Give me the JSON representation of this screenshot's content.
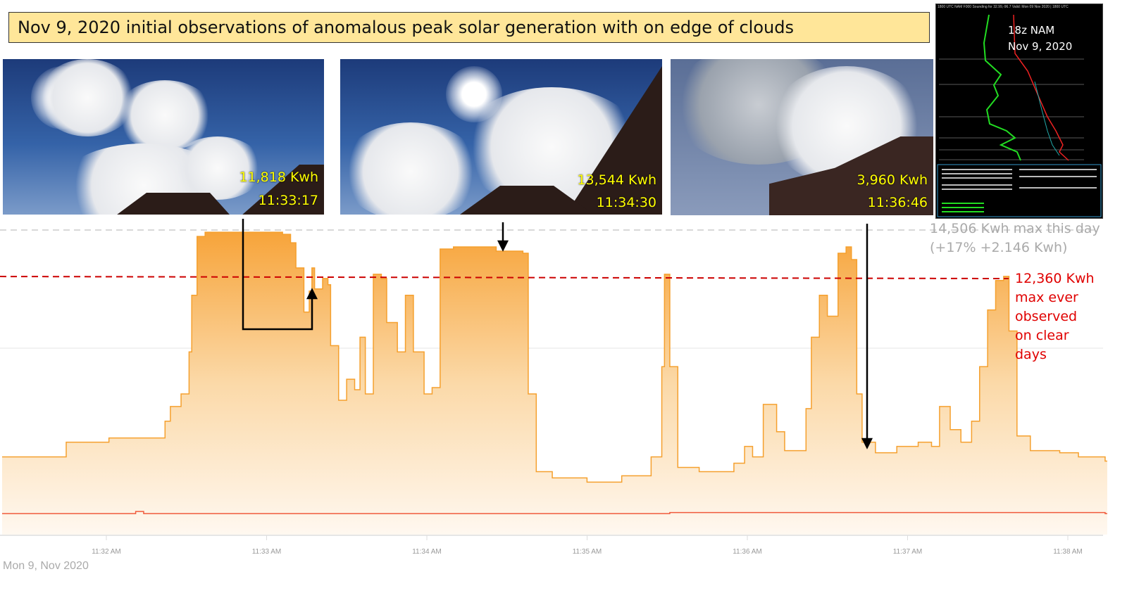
{
  "title": "Nov 9, 2020 initial observations of anomalous peak solar generation with on edge of clouds",
  "photos": [
    {
      "value": "11,818 Kwh",
      "time": "11:33:17"
    },
    {
      "value": "13,544 Kwh",
      "time": "11:34:30"
    },
    {
      "value": "3,960 Kwh",
      "time": "11:36:46"
    }
  ],
  "sounding": {
    "header": "1800 UTC NAM F000 Sounding for 32.99,-96.7 Valid: Mon 09 Nov 2020 | 1800 UTC",
    "label_line1": "18z NAM",
    "label_line2": "Nov 9, 2020"
  },
  "annotations": {
    "max_day_line1": "14,506 Kwh max this day",
    "max_day_line2": "(+17% +2.146 Kwh)",
    "max_ever": [
      "12,360 Kwh",
      "max ever",
      "observed",
      "on clear",
      "days"
    ]
  },
  "colors": {
    "area": "#F7A43A",
    "line": "#F5A02E",
    "secondary": "#F05A3C",
    "max_ever": "#CC0000",
    "max_day": "#CCCCCC"
  },
  "chart_data": {
    "type": "area",
    "date_label": "Mon 9, Nov 2020",
    "x_ticks": [
      "11:32 AM",
      "11:33 AM",
      "11:34 AM",
      "11:35 AM",
      "11:36 AM",
      "11:37 AM",
      "11:38 AM"
    ],
    "xlim": [
      "11:31:20",
      "11:38:13"
    ],
    "reference_lines": [
      {
        "label": "14,506 Kwh max this day",
        "value": 14506,
        "style": "gray dashed"
      },
      {
        "label": "12,360 Kwh max ever observed on clear days",
        "value": 12360,
        "style": "red dashed"
      }
    ],
    "grid": "horizontal",
    "series": [
      {
        "points": [
          [
            "11:31:20",
            3700
          ],
          [
            "11:31:44",
            4400
          ],
          [
            "11:32:00",
            4600
          ],
          [
            "11:32:21",
            5400
          ],
          [
            "11:32:23",
            6100
          ],
          [
            "11:32:27",
            6700
          ],
          [
            "11:32:30",
            8700
          ],
          [
            "11:32:31",
            11400
          ],
          [
            "11:32:33",
            14200
          ],
          [
            "11:32:36",
            14400
          ],
          [
            "11:33:05",
            14300
          ],
          [
            "11:33:08",
            13900
          ],
          [
            "11:33:10",
            12700
          ],
          [
            "11:33:13",
            10600
          ],
          [
            "11:33:15",
            11600
          ],
          [
            "11:33:16",
            12700
          ],
          [
            "11:33:17",
            11700
          ],
          [
            "11:33:20",
            12200
          ],
          [
            "11:33:22",
            11900
          ],
          [
            "11:33:23",
            9000
          ],
          [
            "11:33:26",
            6400
          ],
          [
            "11:33:29",
            7400
          ],
          [
            "11:33:32",
            6900
          ],
          [
            "11:33:34",
            9400
          ],
          [
            "11:33:36",
            6700
          ],
          [
            "11:33:39",
            12400
          ],
          [
            "11:33:42",
            12200
          ],
          [
            "11:33:44",
            10100
          ],
          [
            "11:33:48",
            8700
          ],
          [
            "11:33:51",
            11400
          ],
          [
            "11:33:54",
            8700
          ],
          [
            "11:33:58",
            6700
          ],
          [
            "11:34:01",
            7000
          ],
          [
            "11:34:04",
            13600
          ],
          [
            "11:34:09",
            13700
          ],
          [
            "11:34:25",
            13500
          ],
          [
            "11:34:35",
            13400
          ],
          [
            "11:34:37",
            6700
          ],
          [
            "11:34:40",
            3000
          ],
          [
            "11:34:46",
            2700
          ],
          [
            "11:34:59",
            2500
          ],
          [
            "11:35:12",
            2800
          ],
          [
            "11:35:23",
            3700
          ],
          [
            "11:35:27",
            8000
          ],
          [
            "11:35:28",
            12400
          ],
          [
            "11:35:30",
            8000
          ],
          [
            "11:35:33",
            3200
          ],
          [
            "11:35:41",
            3000
          ],
          [
            "11:35:54",
            3400
          ],
          [
            "11:35:58",
            4200
          ],
          [
            "11:36:01",
            3700
          ],
          [
            "11:36:05",
            6200
          ],
          [
            "11:36:07",
            6200
          ],
          [
            "11:36:10",
            4900
          ],
          [
            "11:36:13",
            4000
          ],
          [
            "11:36:18",
            4000
          ],
          [
            "11:36:21",
            6000
          ],
          [
            "11:36:23",
            9400
          ],
          [
            "11:36:26",
            11400
          ],
          [
            "11:36:29",
            10400
          ],
          [
            "11:36:33",
            13400
          ],
          [
            "11:36:36",
            13700
          ],
          [
            "11:36:38",
            13100
          ],
          [
            "11:36:40",
            6700
          ],
          [
            "11:36:42",
            4400
          ],
          [
            "11:36:47",
            3900
          ],
          [
            "11:36:55",
            4200
          ],
          [
            "11:37:03",
            4400
          ],
          [
            "11:37:08",
            4200
          ],
          [
            "11:37:11",
            6100
          ],
          [
            "11:37:15",
            5000
          ],
          [
            "11:37:19",
            4400
          ],
          [
            "11:37:23",
            5400
          ],
          [
            "11:37:26",
            8000
          ],
          [
            "11:37:29",
            10700
          ],
          [
            "11:37:32",
            12100
          ],
          [
            "11:37:35",
            12300
          ],
          [
            "11:37:37",
            9700
          ],
          [
            "11:37:40",
            4700
          ],
          [
            "11:37:45",
            4000
          ],
          [
            "11:37:56",
            3900
          ],
          [
            "11:38:03",
            3700
          ],
          [
            "11:38:13",
            3500
          ]
        ]
      },
      {
        "points": [
          [
            "11:31:20",
            1000
          ],
          [
            "11:32:08",
            1000
          ],
          [
            "11:32:10",
            1100
          ],
          [
            "11:32:13",
            1000
          ],
          [
            "11:34:20",
            1000
          ],
          [
            "11:35:30",
            1050
          ],
          [
            "11:38:13",
            1000
          ]
        ]
      }
    ]
  }
}
